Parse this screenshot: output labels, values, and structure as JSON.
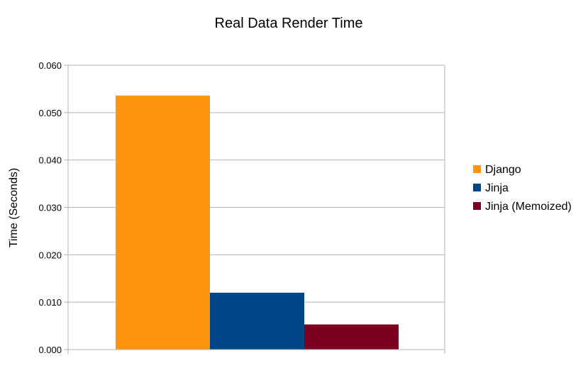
{
  "chart_data": {
    "type": "bar",
    "title": "Real Data Render Time",
    "xlabel": "",
    "ylabel": "Time (Seconds)",
    "ylim": [
      0,
      0.06
    ],
    "yticks": [
      "0.000",
      "0.010",
      "0.020",
      "0.030",
      "0.040",
      "0.050",
      "0.060"
    ],
    "categories": [
      ""
    ],
    "series": [
      {
        "name": "Django",
        "values": [
          0.0536
        ],
        "color": "#ff950e"
      },
      {
        "name": "Jinja",
        "values": [
          0.012
        ],
        "color": "#004586"
      },
      {
        "name": "Jinja (Memoized)",
        "values": [
          0.0053
        ],
        "color": "#7e0021"
      }
    ],
    "grid": true,
    "legend_position": "right"
  }
}
